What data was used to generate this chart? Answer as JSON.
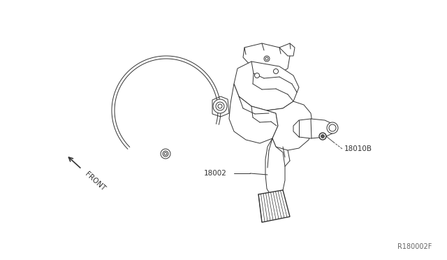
{
  "background_color": "#ffffff",
  "line_color": "#333333",
  "label_18002": "18002",
  "label_18010b": "18010B",
  "label_front": "FRONT",
  "label_ref": "R180002F",
  "fig_width": 6.4,
  "fig_height": 3.72,
  "dpi": 100
}
